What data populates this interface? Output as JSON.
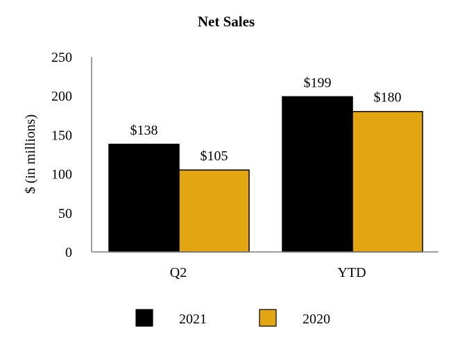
{
  "chart_data": {
    "type": "bar",
    "title": "Net Sales",
    "xlabel": "",
    "ylabel": "$ (in millions)",
    "categories": [
      "Q2",
      "YTD"
    ],
    "series": [
      {
        "name": "2021",
        "color": "#000000",
        "values": [
          138,
          199
        ],
        "labels": [
          "$138",
          "$199"
        ]
      },
      {
        "name": "2020",
        "color": "#E3A611",
        "values": [
          105,
          180
        ],
        "labels": [
          "$105",
          "$180"
        ]
      }
    ],
    "ylim": [
      0,
      250
    ],
    "yticks": [
      0,
      50,
      100,
      150,
      200,
      250
    ],
    "grid": false,
    "legend_position": "bottom"
  }
}
